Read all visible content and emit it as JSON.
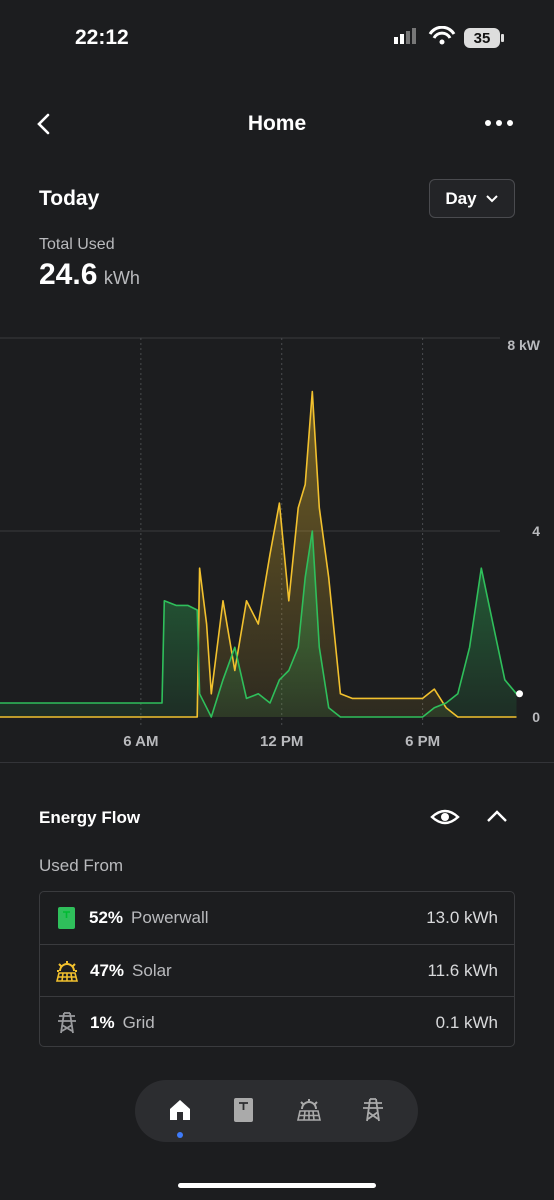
{
  "status_bar": {
    "time": "22:12",
    "battery": "35"
  },
  "header": {
    "title": "Home"
  },
  "summary": {
    "period": "Today",
    "range_button": "Day",
    "label": "Total Used",
    "value": "24.6",
    "unit": "kWh"
  },
  "chart_data": {
    "type": "line",
    "x": [
      0,
      1,
      2,
      3,
      4,
      5,
      6,
      6.9,
      7,
      7.5,
      8,
      8.4,
      8.5,
      8.8,
      9,
      9.5,
      10,
      10.5,
      11,
      11.5,
      11.9,
      12.3,
      12.7,
      13,
      13.3,
      13.6,
      14,
      14.5,
      15,
      16,
      17,
      18,
      18.5,
      19,
      19.5,
      20,
      20.5,
      21,
      21.5,
      22
    ],
    "series": [
      {
        "color": "#2fbf5b",
        "values": [
          0.3,
          0.3,
          0.3,
          0.3,
          0.3,
          0.3,
          0.3,
          0.3,
          2.5,
          2.4,
          2.4,
          2.3,
          0.5,
          0.2,
          0,
          0.8,
          1.5,
          0.4,
          0.5,
          0.3,
          0.8,
          1.0,
          1.5,
          3.0,
          4.0,
          1.5,
          0.2,
          0,
          0,
          0,
          0,
          0,
          0.2,
          0.3,
          0.5,
          1.5,
          3.2,
          2.0,
          0.8,
          0.5
        ]
      },
      {
        "color": "#f2c12e",
        "values": [
          0,
          0,
          0,
          0,
          0,
          0,
          0,
          0,
          0,
          0,
          0,
          0,
          3.2,
          2.0,
          0.5,
          2.5,
          1.0,
          2.5,
          2.0,
          3.5,
          4.6,
          2.5,
          4.5,
          5.0,
          7.0,
          4.5,
          3.0,
          0.5,
          0.4,
          0.4,
          0.4,
          0.4,
          0.6,
          0.2,
          0,
          0,
          0,
          0,
          0,
          0
        ]
      }
    ],
    "xlim": [
      0,
      23
    ],
    "xticks": [
      {
        "value": 6,
        "label": "6 AM"
      },
      {
        "value": 12,
        "label": "12 PM"
      },
      {
        "value": 18,
        "label": "6 PM"
      }
    ],
    "ylim": [
      0,
      8
    ],
    "yticks": [
      0,
      4,
      {
        "value": 8,
        "label": "8 kW"
      }
    ],
    "grid": true
  },
  "energy_flow": {
    "title": "Energy Flow",
    "subtitle": "Used From",
    "rows": [
      {
        "percent": "52%",
        "source": "Powerwall",
        "amount": "13.0 kWh"
      },
      {
        "percent": "47%",
        "source": "Solar",
        "amount": "11.6 kWh"
      },
      {
        "percent": "1%",
        "source": "Grid",
        "amount": "0.1 kWh"
      }
    ]
  }
}
